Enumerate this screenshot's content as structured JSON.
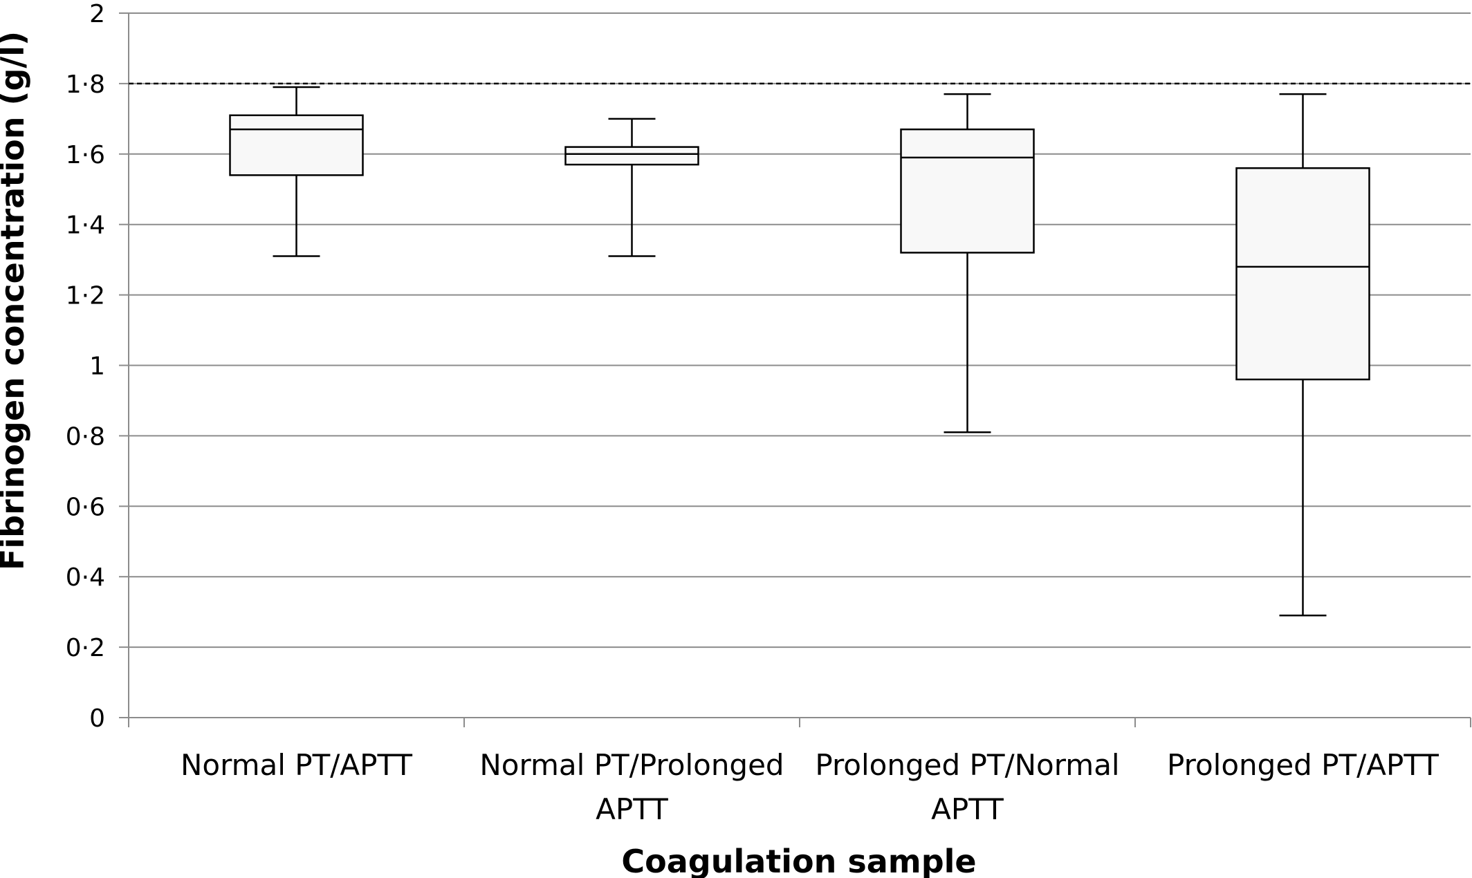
{
  "chart_data": {
    "type": "box",
    "xlabel": "Coagulation sample",
    "ylabel": "Fibrinogen concentration (g/l)",
    "ylim": [
      0,
      2
    ],
    "yticks": [
      {
        "value": 0,
        "label": "0"
      },
      {
        "value": 0.2,
        "label": "0·2"
      },
      {
        "value": 0.4,
        "label": "0·4"
      },
      {
        "value": 0.6,
        "label": "0·6"
      },
      {
        "value": 0.8,
        "label": "0·8"
      },
      {
        "value": 1,
        "label": "1"
      },
      {
        "value": 1.2,
        "label": "1·2"
      },
      {
        "value": 1.4,
        "label": "1·4"
      },
      {
        "value": 1.6,
        "label": "1·6"
      },
      {
        "value": 1.8,
        "label": "1·8"
      },
      {
        "value": 2,
        "label": "2"
      }
    ],
    "grid": true,
    "reference_line": {
      "value": 1.8,
      "style": "dashed"
    },
    "categories": [
      {
        "lines": [
          "Normal PT/APTT"
        ],
        "min": 1.31,
        "q1": 1.54,
        "median": 1.67,
        "q3": 1.71,
        "max": 1.79
      },
      {
        "lines": [
          "Normal PT/Prolonged",
          "APTT"
        ],
        "min": 1.31,
        "q1": 1.57,
        "median": 1.6,
        "q3": 1.62,
        "max": 1.7
      },
      {
        "lines": [
          "Prolonged PT/Normal",
          "APTT"
        ],
        "min": 0.81,
        "q1": 1.32,
        "median": 1.59,
        "q3": 1.67,
        "max": 1.77
      },
      {
        "lines": [
          "Prolonged PT/APTT"
        ],
        "min": 0.29,
        "q1": 0.96,
        "median": 1.28,
        "q3": 1.56,
        "max": 1.77
      }
    ]
  }
}
